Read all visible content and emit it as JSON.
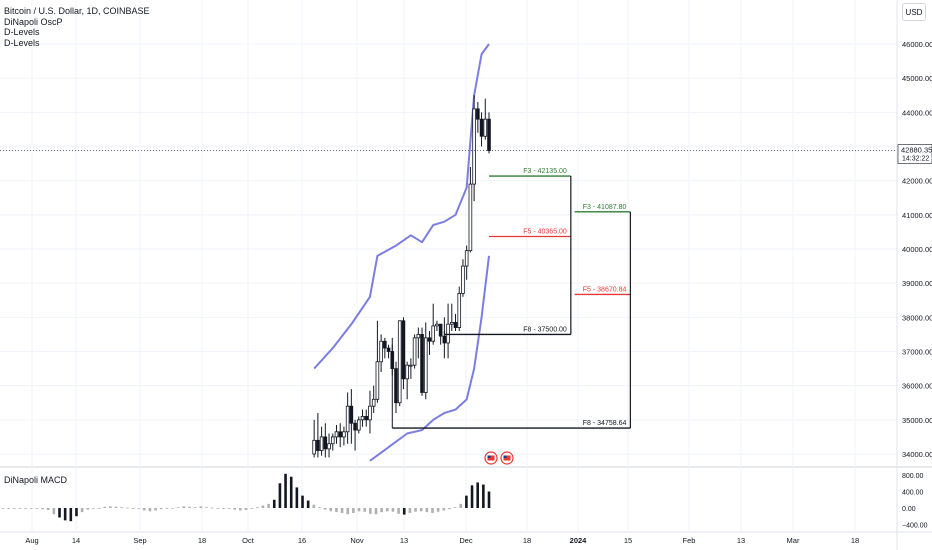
{
  "header": {
    "title": "Bitcoin / U.S. Dollar, 1D, COINBASE",
    "indicators": [
      "DiNapoli OscP",
      "D-Levels",
      "D-Levels"
    ],
    "currency_button": "USD"
  },
  "price_badge": {
    "price": "42880.35",
    "countdown": "14:32:22"
  },
  "colors": {
    "up": "#131722",
    "down": "#131722",
    "band": "#7b7ee0",
    "target_green": "#2e7d32",
    "target_red": "#e53935",
    "target_black": "#131722",
    "macd_hist": "#b0b0b0",
    "macd_dark": "#131722"
  },
  "chart_data": [
    {
      "type": "candlestick",
      "title": "Bitcoin / U.S. Dollar, 1D, COINBASE",
      "y_axis_ticks": [
        "34000.00",
        "35000.00",
        "36000.00",
        "37000.00",
        "38000.00",
        "39000.00",
        "40000.00",
        "41000.00",
        "42000.00",
        "43000.00",
        "44000.00",
        "45000.00",
        "46000.00"
      ],
      "x_axis_ticks": [
        "Aug",
        "14",
        "Sep",
        "18",
        "Oct",
        "16",
        "Nov",
        "13",
        "Dec",
        "18",
        "2024",
        "15",
        "Feb",
        "13",
        "Mar",
        "18"
      ],
      "ylim": [
        33800,
        46500
      ],
      "candles": [
        {
          "date": "2023-10-23",
          "o": 34000,
          "h": 35000,
          "l": 33900,
          "c": 34400
        },
        {
          "date": "2023-10-24",
          "o": 34400,
          "h": 35200,
          "l": 33900,
          "c": 34100
        },
        {
          "date": "2023-10-25",
          "o": 34100,
          "h": 34800,
          "l": 33950,
          "c": 34500
        },
        {
          "date": "2023-10-26",
          "o": 34500,
          "h": 34900,
          "l": 33900,
          "c": 34150
        },
        {
          "date": "2023-10-27",
          "o": 34150,
          "h": 34600,
          "l": 33900,
          "c": 34300
        },
        {
          "date": "2023-10-28",
          "o": 34300,
          "h": 34600,
          "l": 34100,
          "c": 34500
        },
        {
          "date": "2023-10-29",
          "o": 34500,
          "h": 34850,
          "l": 34300,
          "c": 34650
        },
        {
          "date": "2023-10-30",
          "o": 34650,
          "h": 34900,
          "l": 34200,
          "c": 34500
        },
        {
          "date": "2023-10-31",
          "o": 34500,
          "h": 34800,
          "l": 34250,
          "c": 34650
        },
        {
          "date": "2023-11-01",
          "o": 34650,
          "h": 35800,
          "l": 34300,
          "c": 35400
        },
        {
          "date": "2023-11-02",
          "o": 35400,
          "h": 35900,
          "l": 34300,
          "c": 34900
        },
        {
          "date": "2023-11-03",
          "o": 34900,
          "h": 35000,
          "l": 34100,
          "c": 34700
        },
        {
          "date": "2023-11-04",
          "o": 34700,
          "h": 35100,
          "l": 34600,
          "c": 35000
        },
        {
          "date": "2023-11-05",
          "o": 35000,
          "h": 35300,
          "l": 34800,
          "c": 35100
        },
        {
          "date": "2023-11-06",
          "o": 35100,
          "h": 35300,
          "l": 34800,
          "c": 35000
        },
        {
          "date": "2023-11-07",
          "o": 35000,
          "h": 35850,
          "l": 34600,
          "c": 35400
        },
        {
          "date": "2023-11-08",
          "o": 35400,
          "h": 36000,
          "l": 35200,
          "c": 35600
        },
        {
          "date": "2023-11-09",
          "o": 35600,
          "h": 37900,
          "l": 35500,
          "c": 36700
        },
        {
          "date": "2023-11-10",
          "o": 36700,
          "h": 37500,
          "l": 36400,
          "c": 37300
        },
        {
          "date": "2023-11-11",
          "o": 37300,
          "h": 37400,
          "l": 36800,
          "c": 37100
        },
        {
          "date": "2023-11-12",
          "o": 37100,
          "h": 37200,
          "l": 36800,
          "c": 37000
        },
        {
          "date": "2023-11-13",
          "o": 37000,
          "h": 37400,
          "l": 36300,
          "c": 36500
        },
        {
          "date": "2023-11-14",
          "o": 36500,
          "h": 36700,
          "l": 35200,
          "c": 35500
        },
        {
          "date": "2023-11-15",
          "o": 35500,
          "h": 37900,
          "l": 35400,
          "c": 37900
        },
        {
          "date": "2023-11-16",
          "o": 37900,
          "h": 38000,
          "l": 35900,
          "c": 36200
        },
        {
          "date": "2023-11-17",
          "o": 36200,
          "h": 36700,
          "l": 35600,
          "c": 36600
        },
        {
          "date": "2023-11-18",
          "o": 36600,
          "h": 36800,
          "l": 36200,
          "c": 36600
        },
        {
          "date": "2023-11-19",
          "o": 36600,
          "h": 37500,
          "l": 36500,
          "c": 37400
        },
        {
          "date": "2023-11-20",
          "o": 37400,
          "h": 37700,
          "l": 36800,
          "c": 37500
        },
        {
          "date": "2023-11-21",
          "o": 37500,
          "h": 37700,
          "l": 35700,
          "c": 35800
        },
        {
          "date": "2023-11-22",
          "o": 35800,
          "h": 37850,
          "l": 35600,
          "c": 37400
        },
        {
          "date": "2023-11-23",
          "o": 37400,
          "h": 37600,
          "l": 36900,
          "c": 37300
        },
        {
          "date": "2023-11-24",
          "o": 37300,
          "h": 38400,
          "l": 37200,
          "c": 37750
        },
        {
          "date": "2023-11-25",
          "o": 37750,
          "h": 37900,
          "l": 37600,
          "c": 37800
        },
        {
          "date": "2023-11-26",
          "o": 37800,
          "h": 37800,
          "l": 37200,
          "c": 37450
        },
        {
          "date": "2023-11-27",
          "o": 37450,
          "h": 37600,
          "l": 36800,
          "c": 37250
        },
        {
          "date": "2023-11-28",
          "o": 37250,
          "h": 38400,
          "l": 36800,
          "c": 37800
        },
        {
          "date": "2023-11-29",
          "o": 37800,
          "h": 38400,
          "l": 37600,
          "c": 37850
        },
        {
          "date": "2023-11-30",
          "o": 37850,
          "h": 38100,
          "l": 37600,
          "c": 37700
        },
        {
          "date": "2023-12-01",
          "o": 37700,
          "h": 38900,
          "l": 37600,
          "c": 38700
        },
        {
          "date": "2023-12-02",
          "o": 38700,
          "h": 39700,
          "l": 38600,
          "c": 39500
        },
        {
          "date": "2023-12-03",
          "o": 39500,
          "h": 40100,
          "l": 39100,
          "c": 39950
        },
        {
          "date": "2023-12-04",
          "o": 39950,
          "h": 42400,
          "l": 39900,
          "c": 41900
        },
        {
          "date": "2023-12-05",
          "o": 41900,
          "h": 44500,
          "l": 41400,
          "c": 44100
        },
        {
          "date": "2023-12-06",
          "o": 44100,
          "h": 44300,
          "l": 43400,
          "c": 43800
        },
        {
          "date": "2023-12-07",
          "o": 43800,
          "h": 44000,
          "l": 43000,
          "c": 43300
        },
        {
          "date": "2023-12-08",
          "o": 43300,
          "h": 44400,
          "l": 43200,
          "c": 43800
        },
        {
          "date": "2023-12-09",
          "o": 43800,
          "h": 44000,
          "l": 42800,
          "c": 42880
        }
      ],
      "bands": {
        "upper": [
          {
            "date": "2023-10-23",
            "v": 36500
          },
          {
            "date": "2023-10-28",
            "v": 37100
          },
          {
            "date": "2023-11-02",
            "v": 37800
          },
          {
            "date": "2023-11-07",
            "v": 38600
          },
          {
            "date": "2023-11-09",
            "v": 39800
          },
          {
            "date": "2023-11-14",
            "v": 40100
          },
          {
            "date": "2023-11-18",
            "v": 40400
          },
          {
            "date": "2023-11-21",
            "v": 40200
          },
          {
            "date": "2023-11-24",
            "v": 40700
          },
          {
            "date": "2023-11-27",
            "v": 40800
          },
          {
            "date": "2023-11-30",
            "v": 41000
          },
          {
            "date": "2023-12-03",
            "v": 41800
          },
          {
            "date": "2023-12-05",
            "v": 44500
          },
          {
            "date": "2023-12-07",
            "v": 45700
          },
          {
            "date": "2023-12-09",
            "v": 46000
          }
        ],
        "lower": [
          {
            "date": "2023-11-07",
            "v": 33800
          },
          {
            "date": "2023-11-12",
            "v": 34200
          },
          {
            "date": "2023-11-17",
            "v": 34600
          },
          {
            "date": "2023-11-21",
            "v": 34700
          },
          {
            "date": "2023-11-24",
            "v": 35000
          },
          {
            "date": "2023-11-27",
            "v": 35200
          },
          {
            "date": "2023-11-30",
            "v": 35300
          },
          {
            "date": "2023-12-03",
            "v": 35600
          },
          {
            "date": "2023-12-05",
            "v": 36500
          },
          {
            "date": "2023-12-07",
            "v": 38000
          },
          {
            "date": "2023-12-09",
            "v": 39800
          }
        ]
      },
      "targets": [
        {
          "label": "F3 - 42135.00",
          "value": 42135.0,
          "color": "green",
          "from": "2023-12-09",
          "to": "2023-12-31"
        },
        {
          "label": "F5 - 40365.00",
          "value": 40365.0,
          "color": "red",
          "from": "2023-12-09",
          "to": "2023-12-31"
        },
        {
          "label": "F8 - 37500.00",
          "value": 37500.0,
          "color": "black",
          "from": "2023-11-27",
          "to": "2023-12-31"
        },
        {
          "label": "F3 - 41087.80",
          "value": 41087.8,
          "color": "green",
          "from": "2024-01-01",
          "to": "2024-01-16"
        },
        {
          "label": "F5 - 38670.84",
          "value": 38670.84,
          "color": "red",
          "from": "2024-01-01",
          "to": "2024-01-16"
        },
        {
          "label": "F8 - 34758.64",
          "value": 34758.64,
          "color": "black",
          "from": "2023-11-13",
          "to": "2024-01-16"
        }
      ]
    },
    {
      "type": "bar",
      "title": "DiNapoli MACD",
      "y_axis_ticks": [
        "800.00",
        "400.00",
        "0.00",
        "−400.00"
      ],
      "ylim": [
        -450,
        850
      ],
      "values": [
        0,
        0,
        0,
        0,
        0,
        0,
        -20,
        -30,
        -50,
        -150,
        -230,
        -300,
        -320,
        -200,
        -100,
        -40,
        -20,
        0,
        30,
        40,
        30,
        20,
        10,
        0,
        -20,
        -60,
        -80,
        -60,
        -30,
        -10,
        0,
        20,
        40,
        30,
        20,
        40,
        20,
        10,
        0,
        -10,
        -20,
        -40,
        -60,
        -50,
        -20,
        20,
        60,
        100,
        200,
        600,
        830,
        760,
        500,
        300,
        180,
        80,
        20,
        -40,
        -80,
        -100,
        -120,
        -150,
        -120,
        -80,
        -90,
        -140,
        -150,
        -100,
        -80,
        -90,
        -140,
        -160,
        -120,
        -90,
        -80,
        -100,
        -120,
        -90,
        -60,
        -30,
        20,
        100,
        300,
        550,
        620,
        570,
        400
      ]
    }
  ]
}
